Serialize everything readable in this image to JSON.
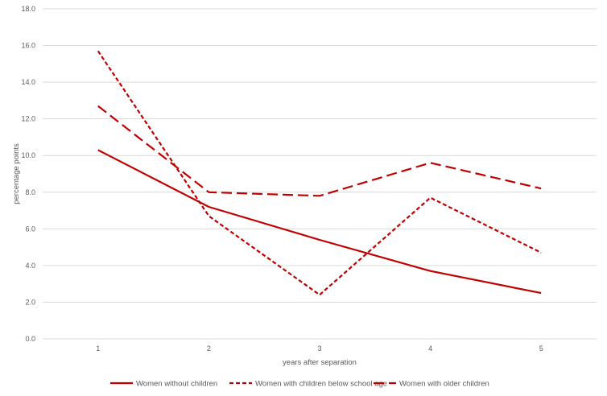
{
  "chart_data": {
    "type": "line",
    "title": "",
    "xlabel": "years after separation",
    "ylabel": "percentage points",
    "x": [
      1,
      2,
      3,
      4,
      5
    ],
    "x_tick_labels": [
      "1",
      "2",
      "3",
      "4",
      "5"
    ],
    "ylim": [
      0,
      18
    ],
    "y_tick_labels": [
      "0.0",
      "2.0",
      "4.0",
      "6.0",
      "8.0",
      "10.0",
      "12.0",
      "14.0",
      "16.0",
      "18.0"
    ],
    "grid": true,
    "legend_position": "bottom",
    "line_color": "#c00000",
    "series": [
      {
        "name": "Women without children",
        "dash": "solid",
        "values": [
          10.3,
          7.2,
          5.4,
          3.7,
          2.5
        ]
      },
      {
        "name": "Women with children below school age",
        "dash": "dashed",
        "values": [
          15.7,
          6.7,
          2.4,
          7.7,
          4.7
        ]
      },
      {
        "name": "Women with older children",
        "dash": "long-dashed",
        "values": [
          12.7,
          8.0,
          7.8,
          9.6,
          8.2
        ]
      }
    ]
  }
}
